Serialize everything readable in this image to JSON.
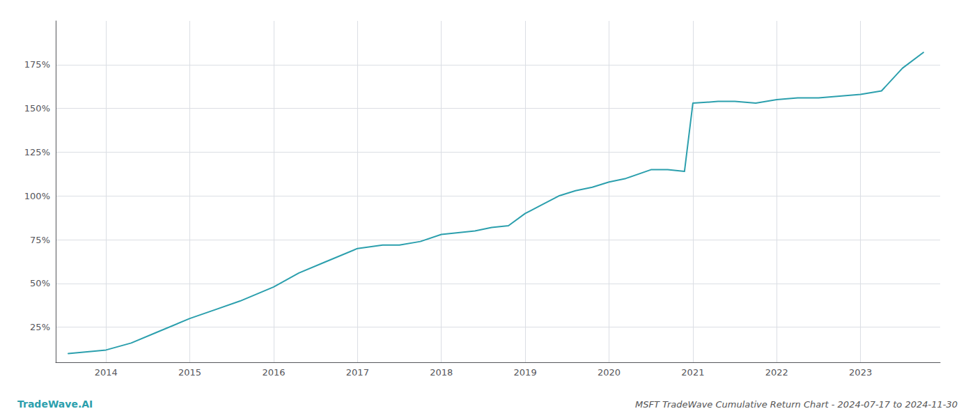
{
  "chart_data": {
    "type": "line",
    "title": "MSFT TradeWave Cumulative Return Chart - 2024-07-17 to 2024-11-30",
    "annotations": [
      "TradeWave.AI"
    ],
    "color": "#2b9fad",
    "x": [
      2013.55,
      2014.0,
      2014.3,
      2014.6,
      2015.0,
      2015.3,
      2015.6,
      2016.0,
      2016.3,
      2016.6,
      2017.0,
      2017.15,
      2017.3,
      2017.5,
      2017.75,
      2018.0,
      2018.2,
      2018.4,
      2018.6,
      2018.8,
      2019.0,
      2019.2,
      2019.4,
      2019.6,
      2019.8,
      2020.0,
      2020.2,
      2020.5,
      2020.7,
      2020.9,
      2021.0,
      2021.3,
      2021.5,
      2021.75,
      2022.0,
      2022.25,
      2022.5,
      2022.75,
      2023.0,
      2023.25,
      2023.5,
      2023.75
    ],
    "values": [
      10,
      12,
      16,
      22,
      30,
      35,
      40,
      48,
      56,
      62,
      70,
      71,
      72,
      72,
      74,
      78,
      79,
      80,
      82,
      83,
      90,
      95,
      100,
      103,
      105,
      108,
      110,
      115,
      115,
      114,
      153,
      154,
      154,
      153,
      155,
      156,
      156,
      157,
      158,
      160,
      173,
      182
    ],
    "xlim": [
      2013.4,
      2023.95
    ],
    "xticks": [
      2014,
      2015,
      2016,
      2017,
      2018,
      2019,
      2020,
      2021,
      2022,
      2023
    ],
    "ylim": [
      5,
      200
    ],
    "yticks": [
      {
        "value": 25,
        "label": "25%"
      },
      {
        "value": 50,
        "label": "50%"
      },
      {
        "value": 75,
        "label": "75%"
      },
      {
        "value": 100,
        "label": "100%"
      },
      {
        "value": 125,
        "label": "125%"
      },
      {
        "value": 150,
        "label": "150%"
      },
      {
        "value": 175,
        "label": "175%"
      }
    ],
    "grid": true
  }
}
